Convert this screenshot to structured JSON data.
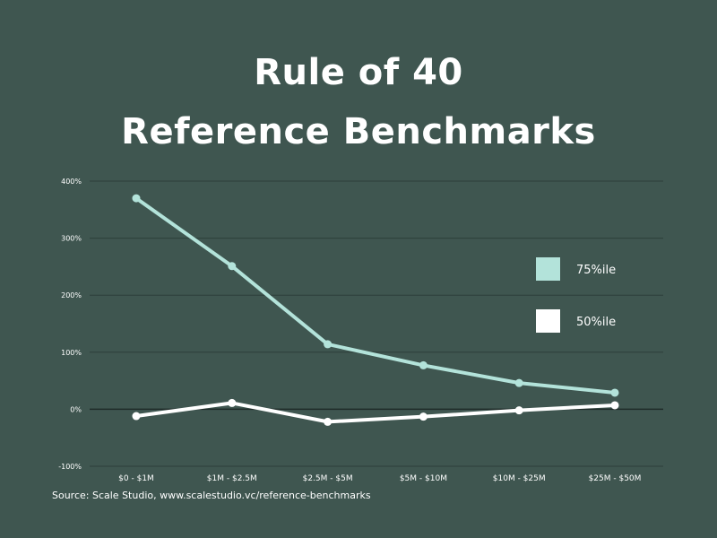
{
  "chart_data": {
    "type": "line",
    "title_lines": [
      "Rule of 40",
      "Reference Benchmarks"
    ],
    "categories": [
      "$0 - $1M",
      "$1M - $2.5M",
      "$2.5M - $5M",
      "$5M - $10M",
      "$10M - $25M",
      "$25M - $50M"
    ],
    "series": [
      {
        "name": "75%ile",
        "color": "#b3e3da",
        "values": [
          370,
          251,
          114,
          77,
          46,
          29
        ]
      },
      {
        "name": "50%ile",
        "color": "#ffffff",
        "values": [
          -12,
          11,
          -22,
          -13,
          -2,
          7
        ]
      }
    ],
    "y_ticks": [
      -100,
      0,
      100,
      200,
      300,
      400
    ],
    "y_tick_labels": [
      "-100%",
      "0%",
      "100%",
      "200%",
      "300%",
      "400%"
    ],
    "ylim": [
      -100,
      400
    ],
    "grid": true,
    "legend_position": "right",
    "source": "Source: Scale Studio, www.scalestudio.vc/reference-benchmarks"
  },
  "colors": {
    "background": "#3f5650",
    "grid": "#2d3f3a",
    "zero_line": "#1f2b28",
    "text": "#ffffff"
  }
}
